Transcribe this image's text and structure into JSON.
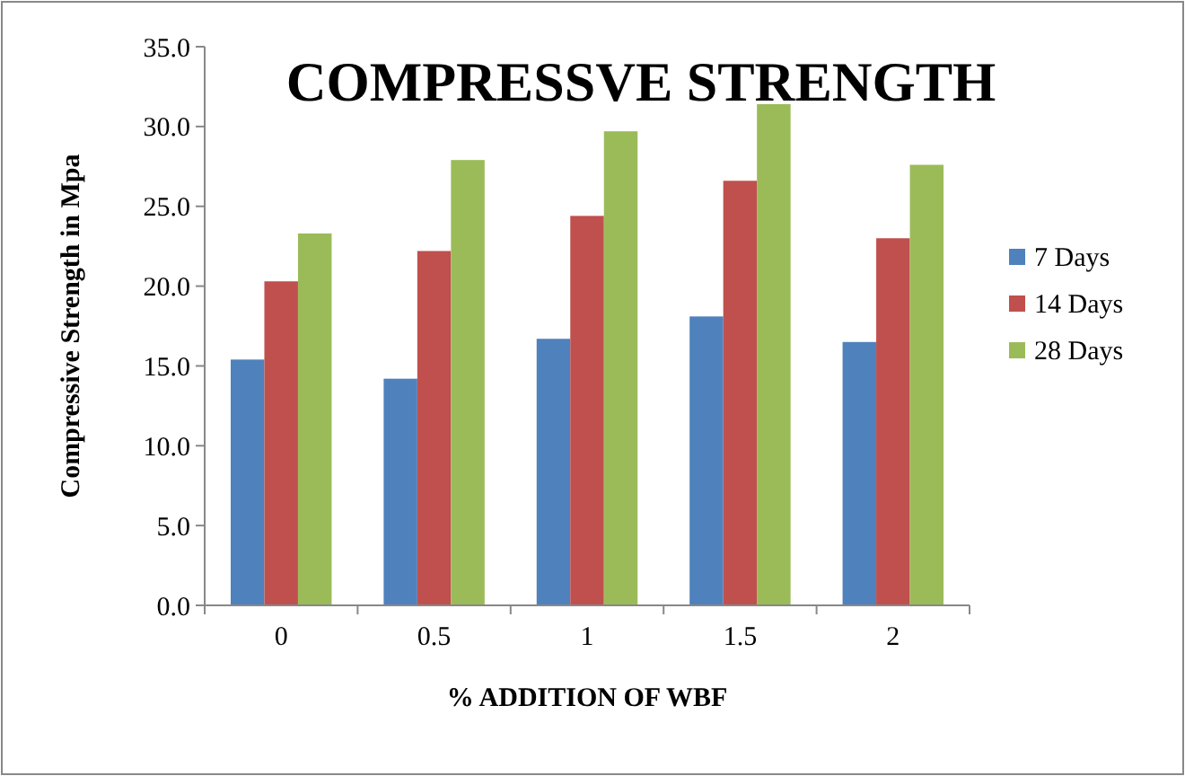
{
  "chart_data": {
    "type": "bar",
    "title": "COMPRESSVE STRENGTH",
    "xlabel": "% ADDITION OF WBF",
    "ylabel": "Compressive Strength in Mpa",
    "categories": [
      "0",
      "0.5",
      "1",
      "1.5",
      "2"
    ],
    "series": [
      {
        "name": "7 Days",
        "color": "#4f81bd",
        "values": [
          15.4,
          14.2,
          16.7,
          18.1,
          16.5
        ]
      },
      {
        "name": "14 Days",
        "color": "#c0504d",
        "values": [
          20.3,
          22.2,
          24.4,
          26.6,
          23.0
        ]
      },
      {
        "name": "28 Days",
        "color": "#9bbb59",
        "values": [
          23.3,
          27.9,
          29.7,
          31.4,
          27.6
        ]
      }
    ],
    "ylim": [
      0,
      35
    ],
    "yticks": [
      {
        "value": 0,
        "label": "0.0"
      },
      {
        "value": 5,
        "label": "5.0"
      },
      {
        "value": 10,
        "label": "10.0"
      },
      {
        "value": 15,
        "label": "15.0"
      },
      {
        "value": 20,
        "label": "20.0"
      },
      {
        "value": 25,
        "label": "25.0"
      },
      {
        "value": 30,
        "label": "30.0"
      },
      {
        "value": 35,
        "label": "35.0"
      }
    ],
    "grid": false,
    "legend": "right"
  }
}
